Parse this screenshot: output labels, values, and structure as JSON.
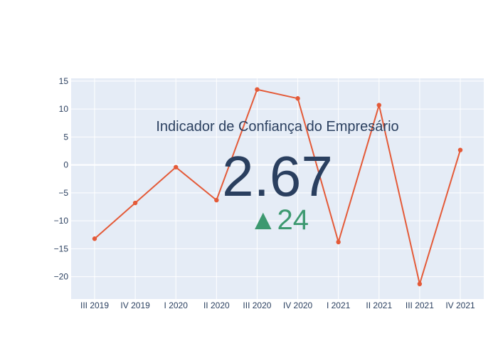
{
  "chart_data": {
    "type": "line",
    "title": "Indicador de Confiança do Empresário",
    "categories": [
      "III 2019",
      "IV 2019",
      "I 2020",
      "II 2020",
      "III 2020",
      "IV 2020",
      "I 2021",
      "II 2021",
      "III 2021",
      "IV 2021"
    ],
    "series": [
      {
        "values": [
          -13.2,
          -6.8,
          -0.4,
          -6.3,
          13.5,
          11.9,
          -13.8,
          10.7,
          -21.3,
          2.67
        ]
      }
    ],
    "ylim": [
      -24,
      15.5
    ],
    "yticks": [
      15,
      10,
      5,
      0,
      -5,
      -10,
      -15,
      -20
    ],
    "ytick_labels": [
      "15",
      "10",
      "5",
      "0",
      "−5",
      "−10",
      "−15",
      "−20"
    ],
    "grid": true,
    "colors": {
      "line": "#e45a38",
      "plot_bg": "#e5ecf6",
      "grid": "#ffffff",
      "text": "#2a3f5f",
      "delta": "#3d9970"
    }
  },
  "indicator": {
    "title": "Indicador de Confiança do Empresário",
    "value": "2.67",
    "delta_symbol": "▲",
    "delta_value": "24"
  }
}
